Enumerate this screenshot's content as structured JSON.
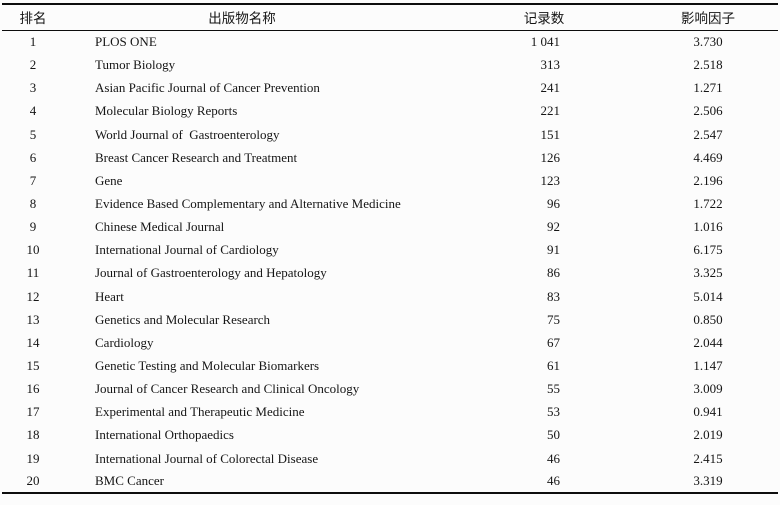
{
  "table": {
    "columns": [
      {
        "key": "rank",
        "label": "排名"
      },
      {
        "key": "name",
        "label": "出版物名称"
      },
      {
        "key": "records",
        "label": "记录数"
      },
      {
        "key": "impact",
        "label": "影响因子"
      }
    ],
    "rows": [
      {
        "rank": "1",
        "name": "PLOS ONE",
        "records": "1 041",
        "impact": "3.730"
      },
      {
        "rank": "2",
        "name": "Tumor Biology",
        "records": "313",
        "impact": "2.518"
      },
      {
        "rank": "3",
        "name": "Asian Pacific Journal of Cancer Prevention",
        "records": "241",
        "impact": "1.271"
      },
      {
        "rank": "4",
        "name": "Molecular Biology Reports",
        "records": "221",
        "impact": "2.506"
      },
      {
        "rank": "5",
        "name": "World Journal of  Gastroenterology",
        "records": "151",
        "impact": "2.547"
      },
      {
        "rank": "6",
        "name": "Breast Cancer Research and Treatment",
        "records": "126",
        "impact": "4.469"
      },
      {
        "rank": "7",
        "name": "Gene",
        "records": "123",
        "impact": "2.196"
      },
      {
        "rank": "8",
        "name": "Evidence Based Complementary and Alternative Medicine",
        "records": "96",
        "impact": "1.722"
      },
      {
        "rank": "9",
        "name": "Chinese Medical Journal",
        "records": "92",
        "impact": "1.016"
      },
      {
        "rank": "10",
        "name": "International Journal of Cardiology",
        "records": "91",
        "impact": "6.175"
      },
      {
        "rank": "11",
        "name": "Journal of Gastroenterology and Hepatology",
        "records": "86",
        "impact": "3.325"
      },
      {
        "rank": "12",
        "name": "Heart",
        "records": "83",
        "impact": "5.014"
      },
      {
        "rank": "13",
        "name": "Genetics and Molecular Research",
        "records": "75",
        "impact": "0.850"
      },
      {
        "rank": "14",
        "name": "Cardiology",
        "records": "67",
        "impact": "2.044"
      },
      {
        "rank": "15",
        "name": "Genetic Testing and Molecular Biomarkers",
        "records": "61",
        "impact": "1.147"
      },
      {
        "rank": "16",
        "name": "Journal of Cancer Research and Clinical Oncology",
        "records": "55",
        "impact": "3.009"
      },
      {
        "rank": "17",
        "name": "Experimental and Therapeutic Medicine",
        "records": "53",
        "impact": "0.941"
      },
      {
        "rank": "18",
        "name": "International Orthopaedics",
        "records": "50",
        "impact": "2.019"
      },
      {
        "rank": "19",
        "name": "International Journal of Colorectal Disease",
        "records": "46",
        "impact": "2.415"
      },
      {
        "rank": "20",
        "name": "BMC Cancer",
        "records": "46",
        "impact": "3.319"
      }
    ]
  },
  "chart_data": {
    "type": "table",
    "title": "",
    "categories": [
      "排名",
      "出版物名称",
      "记录数",
      "影响因子"
    ]
  },
  "colors": {
    "text": "#151515",
    "rule": "#0d0d0d",
    "background": "#fcfcfc"
  }
}
